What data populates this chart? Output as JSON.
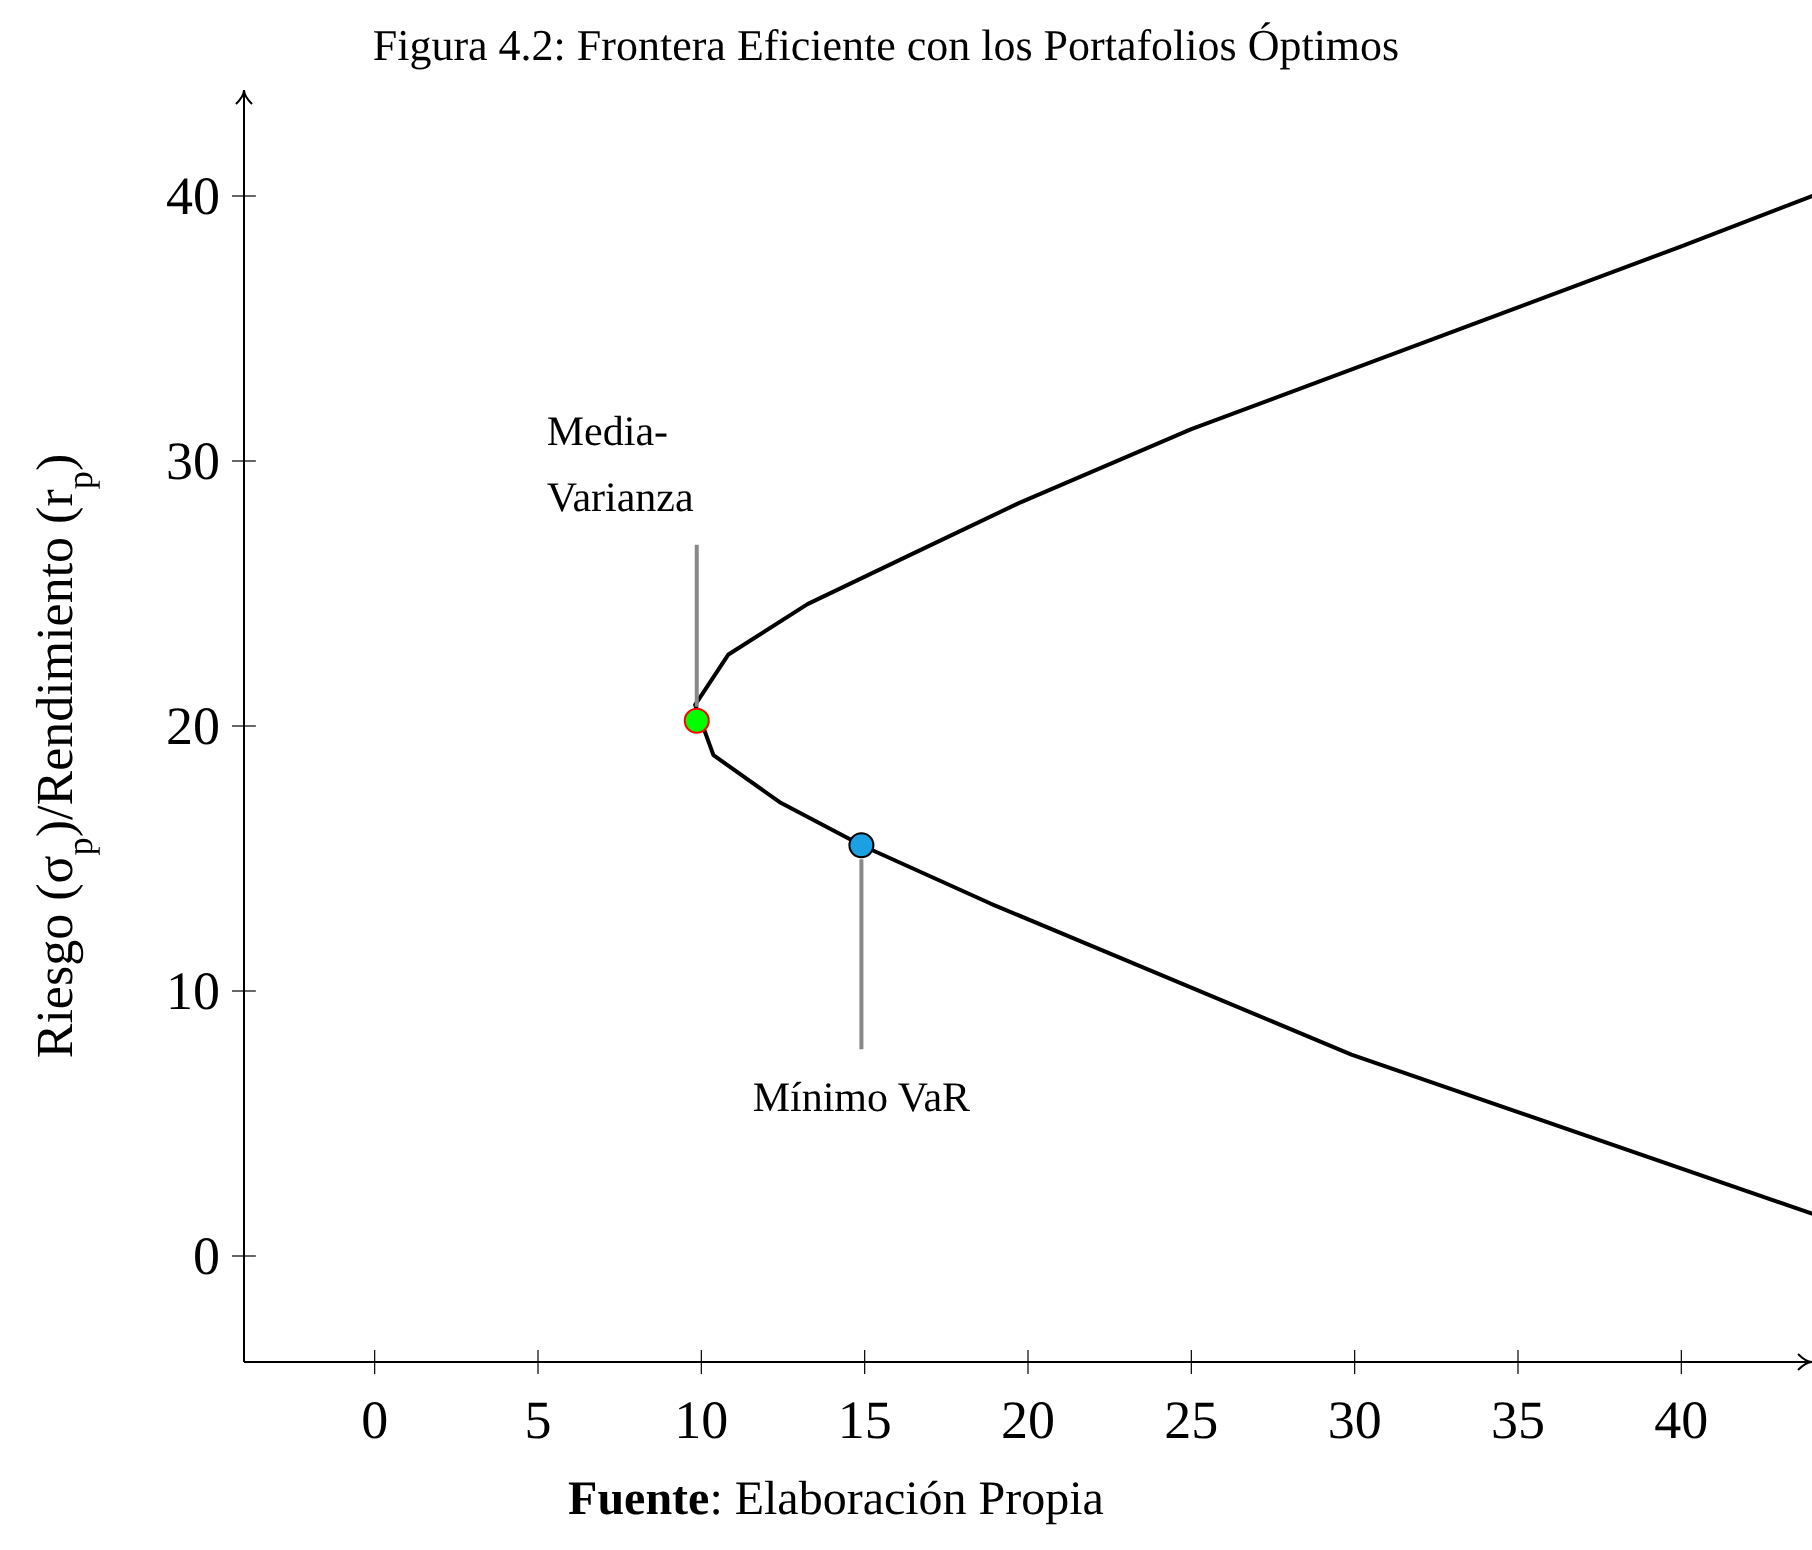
{
  "chart_data": {
    "type": "line",
    "title": "Figura 4.2: Frontera Eficiente con los Portafolios Óptimos",
    "ylabel": "Riesgo (σ$_{p}$)/Rendimiento (r$_{p}$)",
    "xlim": [
      -4,
      44
    ],
    "ylim": [
      -4,
      44
    ],
    "xticks": [
      0,
      5,
      10,
      15,
      20,
      25,
      30,
      35,
      40
    ],
    "yticks": [
      0,
      10,
      20,
      30,
      40
    ],
    "grid": false,
    "series": [
      {
        "color": "#000000",
        "marker": "none",
        "x": [
          44,
          40,
          35,
          25,
          19.7,
          16.3,
          13.25,
          10.83,
          9.81,
          10.37,
          12.43,
          14.9,
          18.85,
          29.9,
          44
        ],
        "values": [
          40,
          38.1,
          35.8,
          31.2,
          28.4,
          26.4,
          24.6,
          22.7,
          20.8,
          18.9,
          17.1,
          15.5,
          13.3,
          7.6,
          1.6
        ]
      },
      {
        "type": "scatter",
        "color": "#00ff00",
        "marker": "circle",
        "x": [
          9.86
        ],
        "values": [
          20.2
        ]
      },
      {
        "type": "scatter",
        "color": "#1ba1e2",
        "marker": "circle",
        "x": [
          14.9
        ],
        "values": [
          15.5
        ]
      }
    ],
    "annotations": [
      {
        "text": "Media-Varianza",
        "x": 9.86,
        "y": 20.2
      },
      {
        "text": "Mínimo VaR",
        "x": 14.9,
        "y": 15.5
      },
      "Fuente: Elaboración Propia"
    ]
  }
}
